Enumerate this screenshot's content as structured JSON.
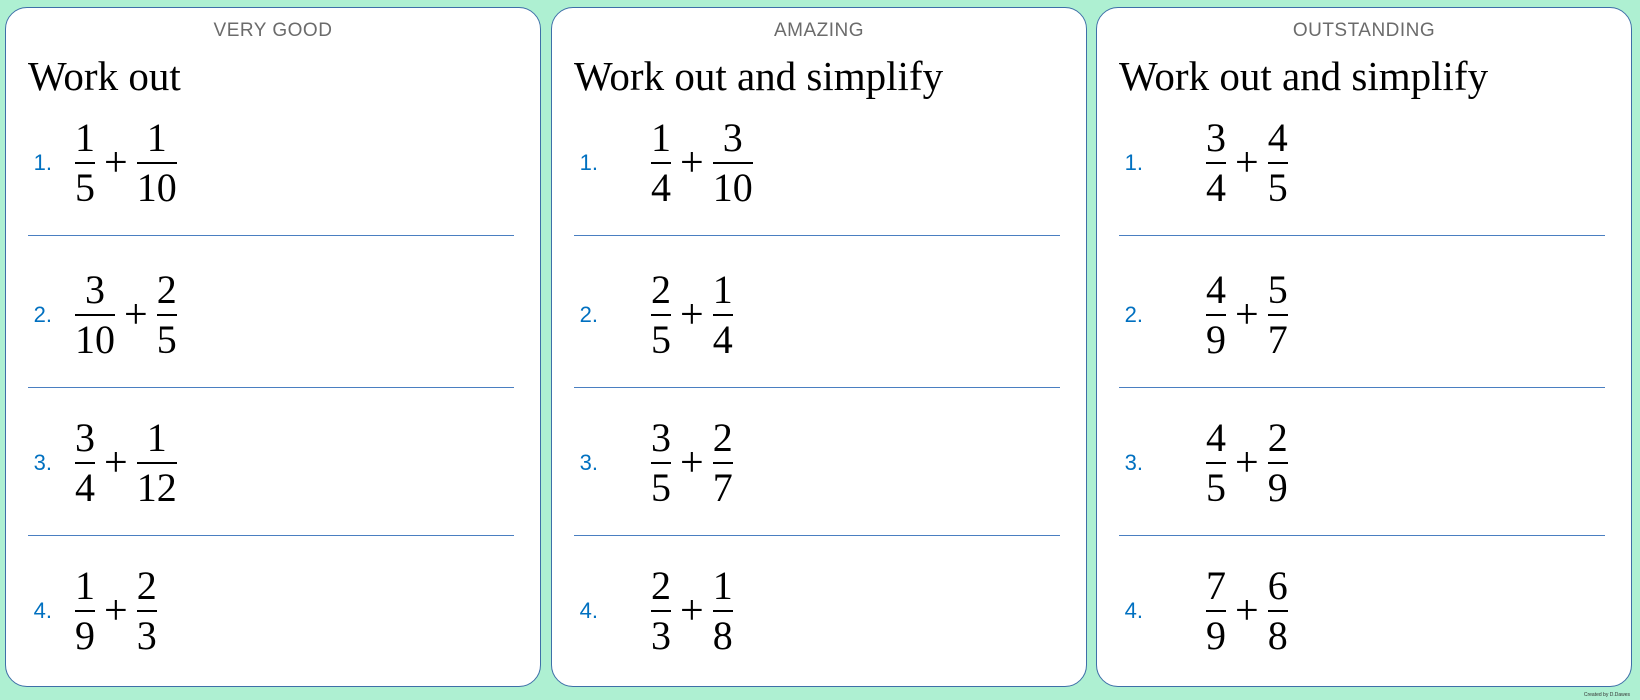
{
  "cards": [
    {
      "level": "VERY GOOD",
      "title": "Work out",
      "questions": [
        {
          "n": "1.",
          "a": [
            "1",
            "5"
          ],
          "op": "+",
          "b": [
            "1",
            "10"
          ]
        },
        {
          "n": "2.",
          "a": [
            "3",
            "10"
          ],
          "op": "+",
          "b": [
            "2",
            "5"
          ]
        },
        {
          "n": "3.",
          "a": [
            "3",
            "4"
          ],
          "op": "+",
          "b": [
            "1",
            "12"
          ]
        },
        {
          "n": "4.",
          "a": [
            "1",
            "9"
          ],
          "op": "+",
          "b": [
            "2",
            "3"
          ]
        }
      ]
    },
    {
      "level": "AMAZING",
      "title": "Work out and simplify",
      "questions": [
        {
          "n": "1.",
          "a": [
            "1",
            "4"
          ],
          "op": "+",
          "b": [
            "3",
            "10"
          ]
        },
        {
          "n": "2.",
          "a": [
            "2",
            "5"
          ],
          "op": "+",
          "b": [
            "1",
            "4"
          ]
        },
        {
          "n": "3.",
          "a": [
            "3",
            "5"
          ],
          "op": "+",
          "b": [
            "2",
            "7"
          ]
        },
        {
          "n": "4.",
          "a": [
            "2",
            "3"
          ],
          "op": "+",
          "b": [
            "1",
            "8"
          ]
        }
      ]
    },
    {
      "level": "OUTSTANDING",
      "title": "Work out and simplify",
      "questions": [
        {
          "n": "1.",
          "a": [
            "3",
            "4"
          ],
          "op": "+",
          "b": [
            "4",
            "5"
          ]
        },
        {
          "n": "2.",
          "a": [
            "4",
            "9"
          ],
          "op": "+",
          "b": [
            "5",
            "7"
          ]
        },
        {
          "n": "3.",
          "a": [
            "4",
            "5"
          ],
          "op": "+",
          "b": [
            "2",
            "9"
          ]
        },
        {
          "n": "4.",
          "a": [
            "7",
            "9"
          ],
          "op": "+",
          "b": [
            "6",
            "8"
          ]
        }
      ]
    }
  ],
  "credit": "Created by D.Dawes",
  "colors": {
    "background": "#aef0d2",
    "number": "#0070c0",
    "border": "#3e6fa8"
  }
}
